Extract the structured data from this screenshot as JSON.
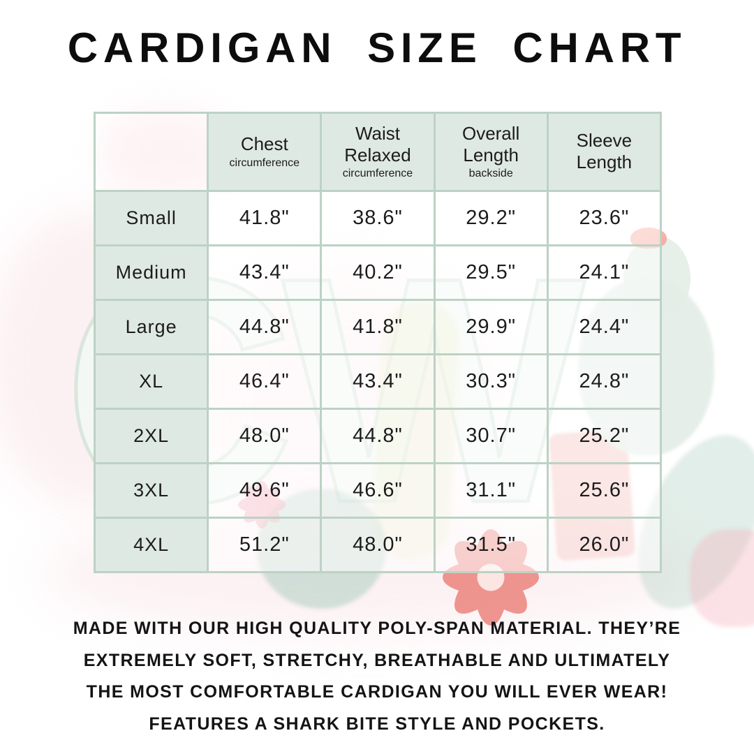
{
  "page": {
    "title": "CARDIGAN SIZE CHART"
  },
  "table": {
    "columns": [
      {
        "main": "Chest",
        "sub": "circumference"
      },
      {
        "main": "Waist Relaxed",
        "sub": "circumference"
      },
      {
        "main": "Overall Length",
        "sub": "backside"
      },
      {
        "main": "Sleeve Length",
        "sub": ""
      }
    ],
    "rows": [
      {
        "size": "Small",
        "chest": "41.8\"",
        "waist": "38.6\"",
        "length": "29.2\"",
        "sleeve": "23.6\""
      },
      {
        "size": "Medium",
        "chest": "43.4\"",
        "waist": "40.2\"",
        "length": "29.5\"",
        "sleeve": "24.1\""
      },
      {
        "size": "Large",
        "chest": "44.8\"",
        "waist": "41.8\"",
        "length": "29.9\"",
        "sleeve": "24.4\""
      },
      {
        "size": "XL",
        "chest": "46.4\"",
        "waist": "43.4\"",
        "length": "30.3\"",
        "sleeve": "24.8\""
      },
      {
        "size": "2XL",
        "chest": "48.0\"",
        "waist": "44.8\"",
        "length": "30.7\"",
        "sleeve": "25.2\""
      },
      {
        "size": "3XL",
        "chest": "49.6\"",
        "waist": "46.6\"",
        "length": "31.1\"",
        "sleeve": "25.6\""
      },
      {
        "size": "4XL",
        "chest": "51.2\"",
        "waist": "48.0\"",
        "length": "31.5\"",
        "sleeve": "26.0\""
      }
    ]
  },
  "footer": {
    "lines": [
      "MADE WITH OUR HIGH QUALITY POLY-SPAN MATERIAL. THEY’RE",
      "EXTREMELY SOFT, STRETCHY, BREATHABLE AND ULTIMATELY",
      "THE MOST COMFORTABLE CARDIGAN YOU WILL EVER WEAR!",
      "FEATURES A SHARK BITE STYLE AND POCKETS."
    ]
  },
  "watermark": {
    "letters": "CW"
  },
  "colors": {
    "background": "#ffffff",
    "table_border": "#bcd2c5",
    "cell_mint": "#dfe9e3",
    "text": "#1c1c1c",
    "watermark_pink": "#fbedef",
    "watermark_green": "#e3ede6",
    "watermark_coral": "#e6564c",
    "watermark_teal": "#9cc4b2"
  },
  "chart_data": {
    "type": "table",
    "title": "CARDIGAN SIZE CHART",
    "categories": [
      "Small",
      "Medium",
      "Large",
      "XL",
      "2XL",
      "3XL",
      "4XL"
    ],
    "series": [
      {
        "name": "Chest circumference (inches)",
        "values": [
          41.8,
          43.4,
          44.8,
          46.4,
          48.0,
          49.6,
          51.2
        ]
      },
      {
        "name": "Waist Relaxed circumference (inches)",
        "values": [
          38.6,
          40.2,
          41.8,
          43.4,
          44.8,
          46.6,
          48.0
        ]
      },
      {
        "name": "Overall Length backside (inches)",
        "values": [
          29.2,
          29.5,
          29.9,
          30.3,
          30.7,
          31.1,
          31.5
        ]
      },
      {
        "name": "Sleeve Length (inches)",
        "values": [
          23.6,
          24.1,
          24.4,
          24.8,
          25.2,
          25.6,
          26.0
        ]
      }
    ],
    "notes": "MADE WITH OUR HIGH QUALITY POLY-SPAN MATERIAL. THEY’RE EXTREMELY SOFT, STRETCHY, BREATHABLE AND ULTIMATELY THE MOST COMFORTABLE CARDIGAN YOU WILL EVER WEAR! FEATURES A SHARK BITE STYLE AND POCKETS."
  }
}
